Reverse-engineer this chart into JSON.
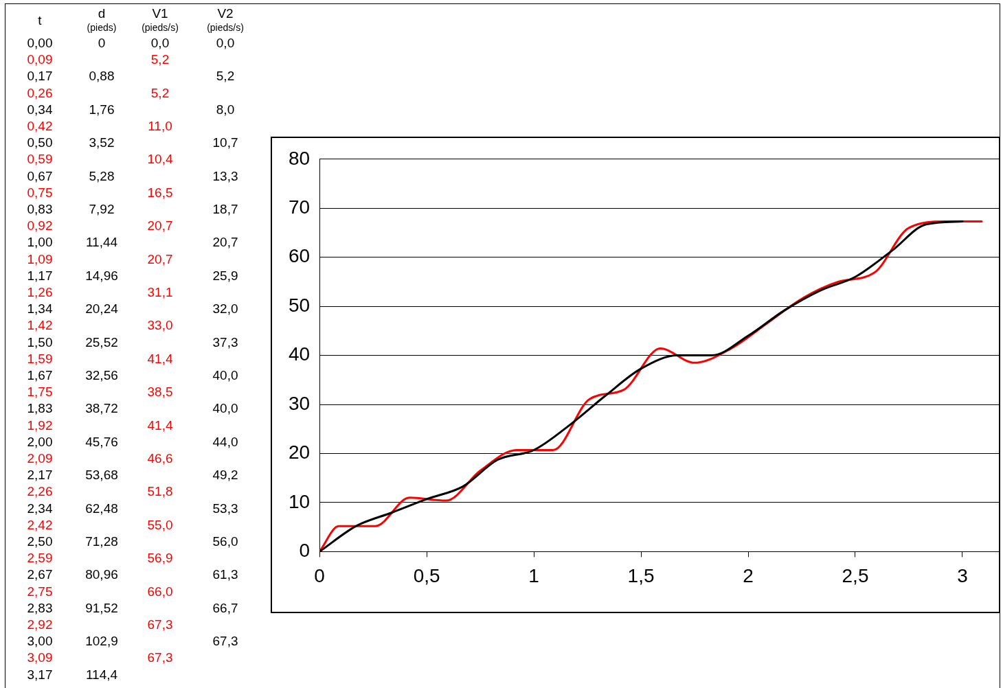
{
  "chart_data": [
    {
      "type": "other",
      "categories": [
        "t",
        "d\n(pieds)",
        "V1\n(pieds/s)",
        "V2\n(pieds/s)"
      ],
      "colors": [
        "#000000",
        "#ff0000",
        "#000000",
        "#ff0000",
        "#000000",
        "#ff0000",
        "#000000",
        "#ff0000",
        "#000000",
        "#ff0000",
        "#000000",
        "#ff0000",
        "#000000",
        "#ff0000",
        "#000000",
        "#ff0000",
        "#000000",
        "#ff0000",
        "#000000",
        "#ff0000",
        "#000000",
        "#ff0000",
        "#000000",
        "#ff0000",
        "#000000",
        "#ff0000",
        "#000000",
        "#ff0000",
        "#000000",
        "#ff0000",
        "#000000",
        "#ff0000",
        "#000000",
        "#ff0000",
        "#000000",
        "#ff0000",
        "#000000",
        "#ff0000",
        "#000000"
      ],
      "cell_labels": [
        [
          "0,00",
          "0",
          "0,0",
          "0,0"
        ],
        [
          "0,09",
          null,
          "5,2",
          null
        ],
        [
          "0,17",
          "0,88",
          null,
          "5,2"
        ],
        [
          "0,26",
          null,
          "5,2",
          null
        ],
        [
          "0,34",
          "1,76",
          null,
          "8,0"
        ],
        [
          "0,42",
          null,
          "11,0",
          null
        ],
        [
          "0,50",
          "3,52",
          null,
          "10,7"
        ],
        [
          "0,59",
          null,
          "10,4",
          null
        ],
        [
          "0,67",
          "5,28",
          null,
          "13,3"
        ],
        [
          "0,75",
          null,
          "16,5",
          null
        ],
        [
          "0,83",
          "7,92",
          null,
          "18,7"
        ],
        [
          "0,92",
          null,
          "20,7",
          null
        ],
        [
          "1,00",
          "11,44",
          null,
          "20,7"
        ],
        [
          "1,09",
          null,
          "20,7",
          null
        ],
        [
          "1,17",
          "14,96",
          null,
          "25,9"
        ],
        [
          "1,26",
          null,
          "31,1",
          null
        ],
        [
          "1,34",
          "20,24",
          null,
          "32,0"
        ],
        [
          "1,42",
          null,
          "33,0",
          null
        ],
        [
          "1,50",
          "25,52",
          null,
          "37,3"
        ],
        [
          "1,59",
          null,
          "41,4",
          null
        ],
        [
          "1,67",
          "32,56",
          null,
          "40,0"
        ],
        [
          "1,75",
          null,
          "38,5",
          null
        ],
        [
          "1,83",
          "38,72",
          null,
          "40,0"
        ],
        [
          "1,92",
          null,
          "41,4",
          null
        ],
        [
          "2,00",
          "45,76",
          null,
          "44,0"
        ],
        [
          "2,09",
          null,
          "46,6",
          null
        ],
        [
          "2,17",
          "53,68",
          null,
          "49,2"
        ],
        [
          "2,26",
          null,
          "51,8",
          null
        ],
        [
          "2,34",
          "62,48",
          null,
          "53,3"
        ],
        [
          "2,42",
          null,
          "55,0",
          null
        ],
        [
          "2,50",
          "71,28",
          null,
          "56,0"
        ],
        [
          "2,59",
          null,
          "56,9",
          null
        ],
        [
          "2,67",
          "80,96",
          null,
          "61,3"
        ],
        [
          "2,75",
          null,
          "66,0",
          null
        ],
        [
          "2,83",
          "91,52",
          null,
          "66,7"
        ],
        [
          "2,92",
          null,
          "67,3",
          null
        ],
        [
          "3,00",
          "102,9",
          null,
          "67,3"
        ],
        [
          "3,09",
          null,
          "67,3",
          null
        ],
        [
          "3,17",
          "114,4",
          null,
          null
        ]
      ]
    },
    {
      "type": "line",
      "xlim": [
        0,
        3.17
      ],
      "xticks": [
        0,
        {
          "value": 0.5,
          "label": "0,5"
        },
        1,
        {
          "value": 1.5,
          "label": "1,5"
        },
        2,
        {
          "value": 2.5,
          "label": "2,5"
        },
        3
      ],
      "ylim": [
        0,
        80
      ],
      "yticks": [
        0,
        10,
        20,
        30,
        40,
        50,
        60,
        70,
        80
      ],
      "grid": "y",
      "legend": false,
      "marker": "none",
      "line_style": "solid",
      "series": [
        {
          "color": "#ff0000",
          "x": [
            0,
            0.09,
            0.26,
            0.42,
            0.59,
            0.75,
            0.92,
            1.09,
            1.26,
            1.42,
            1.59,
            1.75,
            1.92,
            2.09,
            2.26,
            2.42,
            2.59,
            2.75,
            2.92,
            3.09
          ],
          "values": [
            0,
            5.2,
            5.2,
            11,
            10.4,
            16.5,
            20.7,
            20.7,
            31.1,
            33,
            41.4,
            38.5,
            41.4,
            46.6,
            51.8,
            55,
            56.9,
            66,
            67.3,
            67.3
          ]
        },
        {
          "color": "#000000",
          "x": [
            0,
            0.17,
            0.34,
            0.5,
            0.67,
            0.83,
            1,
            1.17,
            1.34,
            1.5,
            1.67,
            1.83,
            2,
            2.17,
            2.34,
            2.5,
            2.67,
            2.83,
            3
          ],
          "values": [
            0,
            5.2,
            8,
            10.7,
            13.3,
            18.7,
            20.7,
            25.9,
            32,
            37.3,
            40,
            40,
            44,
            49.2,
            53.3,
            56,
            61.3,
            66.7,
            67.3
          ]
        }
      ]
    }
  ]
}
